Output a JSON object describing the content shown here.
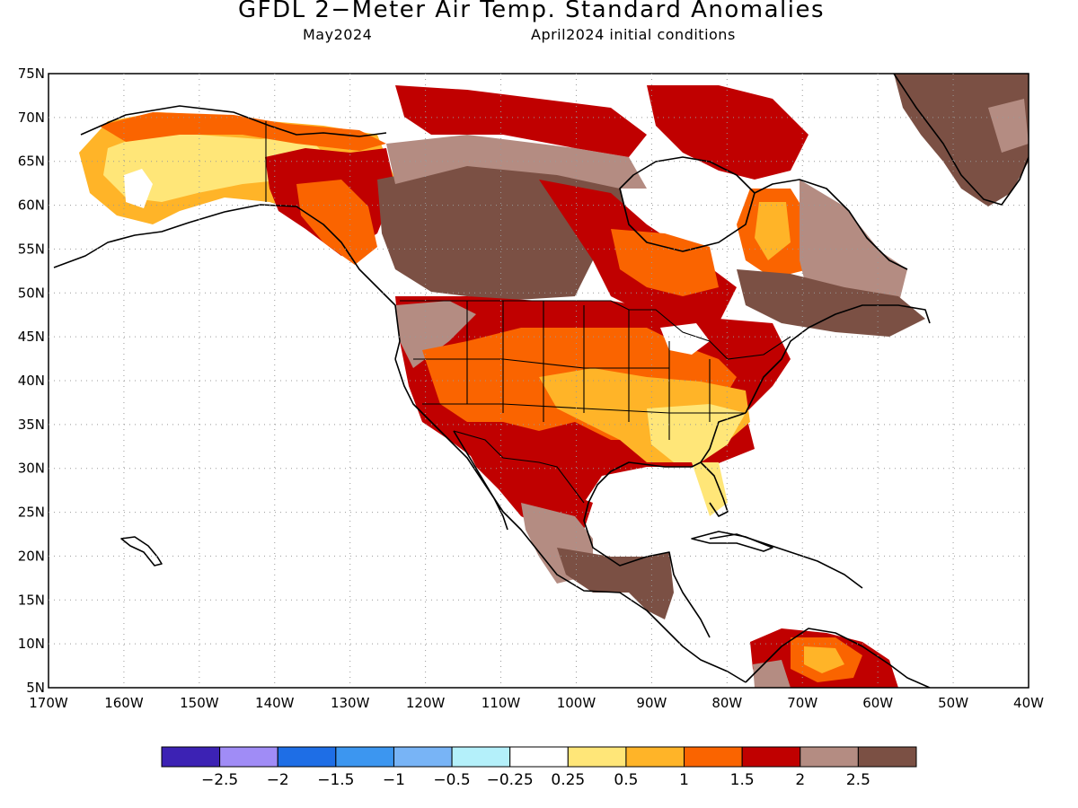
{
  "header": {
    "title": "GFDL 2−Meter Air Temp. Standard Anomalies",
    "forecast_month": "May2024",
    "initial_conditions": "April2024 initial conditions"
  },
  "map": {
    "extent": {
      "lon_min": -170,
      "lon_max": -40,
      "lat_min": 5,
      "lat_max": 75
    },
    "lat_labels": [
      "75N",
      "70N",
      "65N",
      "60N",
      "55N",
      "50N",
      "45N",
      "40N",
      "35N",
      "30N",
      "25N",
      "20N",
      "15N",
      "10N",
      "5N"
    ],
    "lon_labels": [
      "170W",
      "160W",
      "150W",
      "140W",
      "130W",
      "120W",
      "110W",
      "100W",
      "90W",
      "80W",
      "70W",
      "60W",
      "50W",
      "40W"
    ],
    "gridlines": "dotted"
  },
  "legend": {
    "colors": [
      "#3c22b4",
      "#a08cf6",
      "#1e6ee6",
      "#3c96f0",
      "#78b4f6",
      "#b4f0fa",
      "#ffffff",
      "#ffe678",
      "#ffb428",
      "#fa6400",
      "#c00000",
      "#b48c82",
      "#7b5044"
    ],
    "labels": [
      "−2.5",
      "−2",
      "−1.5",
      "−1",
      "−0.5",
      "−0.25",
      "0.25",
      "0.5",
      "1",
      "1.5",
      "2",
      "2.5"
    ]
  }
}
